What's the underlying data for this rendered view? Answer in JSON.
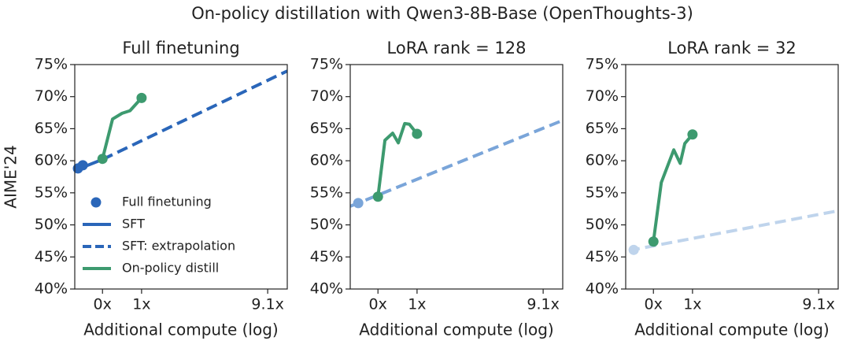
{
  "title": "On-policy distillation with Qwen3-8B-Base (OpenThoughts-3)",
  "chart_data": [
    {
      "type": "line",
      "title": "Full finetuning",
      "xlabel": "Additional compute (log)",
      "ylabel": "AIME'24",
      "xscale": "log",
      "xlim": [
        -0.5,
        11.6
      ],
      "xticks": [
        {
          "value": 0,
          "label": "0x"
        },
        {
          "value": 1,
          "label": "1x"
        },
        {
          "value": 9.1,
          "label": "9.1x"
        }
      ],
      "ylim": [
        40,
        75
      ],
      "yticks": [
        {
          "value": 40,
          "label": "40%"
        },
        {
          "value": 45,
          "label": "45%"
        },
        {
          "value": 50,
          "label": "50%"
        },
        {
          "value": 55,
          "label": "55%"
        },
        {
          "value": 60,
          "label": "60%"
        },
        {
          "value": 65,
          "label": "65%"
        },
        {
          "value": 70,
          "label": "70%"
        },
        {
          "value": 75,
          "label": "75%"
        }
      ],
      "legend": "lower left",
      "series": [
        {
          "name": "Full finetuning",
          "style": "scatter",
          "color": "#2a66b9",
          "x": [
            -0.45,
            -0.37
          ],
          "values": [
            58.8,
            59.3
          ]
        },
        {
          "name": "SFT",
          "style": "solid",
          "color": "#2a66b9",
          "x": [
            -0.5,
            0
          ],
          "values": [
            58.5,
            60.2
          ]
        },
        {
          "name": "SFT: extrapolation",
          "style": "dashed",
          "color": "#2a66b9",
          "x": [
            0,
            11.6
          ],
          "values": [
            60.2,
            74.0
          ]
        },
        {
          "name": "On-policy distill",
          "style": "solid",
          "markers": "ends",
          "color": "#3d9a6f",
          "x": [
            0,
            0.22,
            0.45,
            0.66,
            1
          ],
          "values": [
            60.3,
            66.5,
            67.4,
            67.8,
            69.8
          ]
        }
      ]
    },
    {
      "type": "line",
      "title": "LoRA rank = 128",
      "xlabel": "Additional compute (log)",
      "xscale": "log",
      "xlim": [
        -0.5,
        11.6
      ],
      "xticks": [
        {
          "value": 0,
          "label": "0x"
        },
        {
          "value": 1,
          "label": "1x"
        },
        {
          "value": 9.1,
          "label": "9.1x"
        }
      ],
      "ylim": [
        40,
        75
      ],
      "yticks": [
        {
          "value": 40,
          "label": "40%"
        },
        {
          "value": 45,
          "label": "45%"
        },
        {
          "value": 50,
          "label": "50%"
        },
        {
          "value": 55,
          "label": "55%"
        },
        {
          "value": 60,
          "label": "60%"
        },
        {
          "value": 65,
          "label": "65%"
        },
        {
          "value": 70,
          "label": "70%"
        },
        {
          "value": 75,
          "label": "75%"
        }
      ],
      "series": [
        {
          "style": "scatter",
          "color": "#7aa5d9",
          "x": [
            -0.37
          ],
          "values": [
            53.4
          ]
        },
        {
          "style": "dashed",
          "color": "#7aa5d9",
          "x": [
            -0.5,
            11.6
          ],
          "values": [
            52.9,
            66.3
          ]
        },
        {
          "style": "solid",
          "markers": "ends",
          "color": "#3d9a6f",
          "x": [
            0,
            0.15,
            0.33,
            0.47,
            0.64,
            0.77,
            1
          ],
          "values": [
            54.4,
            63.2,
            64.3,
            62.8,
            65.8,
            65.7,
            64.2
          ]
        }
      ]
    },
    {
      "type": "line",
      "title": "LoRA rank = 32",
      "xlabel": "Additional compute (log)",
      "xscale": "log",
      "xlim": [
        -0.5,
        11.6
      ],
      "xticks": [
        {
          "value": 0,
          "label": "0x"
        },
        {
          "value": 1,
          "label": "1x"
        },
        {
          "value": 9.1,
          "label": "9.1x"
        }
      ],
      "ylim": [
        40,
        75
      ],
      "yticks": [
        {
          "value": 40,
          "label": "40%"
        },
        {
          "value": 45,
          "label": "45%"
        },
        {
          "value": 50,
          "label": "50%"
        },
        {
          "value": 55,
          "label": "55%"
        },
        {
          "value": 60,
          "label": "60%"
        },
        {
          "value": 65,
          "label": "65%"
        },
        {
          "value": 70,
          "label": "70%"
        },
        {
          "value": 75,
          "label": "75%"
        }
      ],
      "series": [
        {
          "style": "scatter",
          "color": "#bfd4ec",
          "x": [
            -0.37
          ],
          "values": [
            46.1
          ]
        },
        {
          "style": "dashed",
          "color": "#bfd4ec",
          "x": [
            -0.45,
            11.6
          ],
          "values": [
            46.0,
            52.2
          ]
        },
        {
          "style": "solid",
          "markers": "ends",
          "color": "#3d9a6f",
          "x": [
            0,
            0.17,
            0.47,
            0.64,
            0.77,
            1
          ],
          "values": [
            47.4,
            56.6,
            61.7,
            59.6,
            62.7,
            64.1
          ]
        }
      ]
    }
  ]
}
